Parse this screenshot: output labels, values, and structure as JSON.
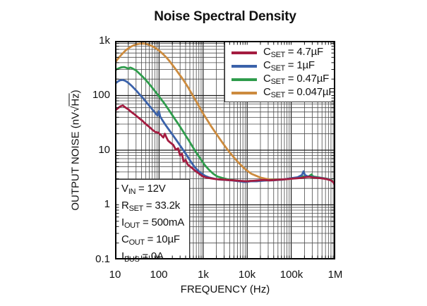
{
  "title": "Noise Spectral Density",
  "axes": {
    "x": {
      "label": "FREQUENCY (Hz)",
      "scale": "log",
      "min": 10,
      "max": 1000000,
      "ticks": [
        "10",
        "100",
        "1k",
        "10k",
        "100k",
        "1M"
      ]
    },
    "y": {
      "label_pre": "OUTPUT NOISE (nV",
      "label_sqrt": "√",
      "label_root": "Hz",
      "label_post": ")",
      "scale": "log",
      "min": 0.1,
      "max": 1000,
      "ticks": [
        "1k",
        "100",
        "10",
        "1",
        "0.1"
      ]
    }
  },
  "legend": {
    "items": [
      {
        "pre": "C",
        "sub": "SET",
        "rest": " = 4.7µF",
        "color": "#A41C40"
      },
      {
        "pre": "C",
        "sub": "SET",
        "rest": " = 1µF",
        "color": "#3B62AA"
      },
      {
        "pre": "C",
        "sub": "SET",
        "rest": " = 0.47µF",
        "color": "#2F9C4C"
      },
      {
        "pre": "C",
        "sub": "SET",
        "rest": " = 0.047µF",
        "color": "#CC8B3E"
      }
    ]
  },
  "annotation": {
    "lines": [
      {
        "pre": "V",
        "sub": "IN",
        "rest": " = 12V"
      },
      {
        "pre": "R",
        "sub": "SET",
        "rest": " = 33.2k"
      },
      {
        "pre": "I",
        "sub": "OUT",
        "rest": " = 500mA"
      },
      {
        "pre": "C",
        "sub": "OUT",
        "rest": " = 10µF"
      },
      {
        "pre": "I",
        "sub": "BUS",
        "rest": " = 0A"
      }
    ]
  },
  "chart_data": {
    "type": "line",
    "title": "Noise Spectral Density",
    "xlabel": "FREQUENCY (Hz)",
    "ylabel": "OUTPUT NOISE (nV/√Hz)",
    "xscale": "log",
    "yscale": "log",
    "xlim": [
      10,
      1000000
    ],
    "ylim": [
      0.1,
      1000
    ],
    "grid": "full log-log grid with minor lines",
    "legend_position": "top-right inside plot",
    "annotations": [
      "VIN = 12V",
      "RSET = 33.2k",
      "IOUT = 500mA",
      "COUT = 10µF",
      "IBUS = 0A"
    ],
    "series": [
      {
        "id": "cset-4p7uF",
        "name": "CSET = 4.7µF",
        "color": "#A41C40",
        "points": [
          [
            10,
            53
          ],
          [
            11.5,
            58
          ],
          [
            13,
            63
          ],
          [
            15,
            66
          ],
          [
            16.5,
            62
          ],
          [
            18,
            59
          ],
          [
            20,
            56
          ],
          [
            22,
            52
          ],
          [
            25,
            48
          ],
          [
            28,
            45
          ],
          [
            32,
            41
          ],
          [
            36,
            38
          ],
          [
            41,
            35
          ],
          [
            47,
            31.5
          ],
          [
            54,
            28.5
          ],
          [
            62,
            26
          ],
          [
            71,
            23.5
          ],
          [
            82,
            21.5
          ],
          [
            95,
            21
          ],
          [
            110,
            19
          ],
          [
            125,
            17
          ],
          [
            135,
            20
          ],
          [
            145,
            17.5
          ],
          [
            160,
            15
          ],
          [
            185,
            13.5
          ],
          [
            210,
            12.5
          ],
          [
            240,
            10.2
          ],
          [
            270,
            10.8
          ],
          [
            300,
            8.0
          ],
          [
            330,
            8.6
          ],
          [
            360,
            6.2
          ],
          [
            400,
            6.6
          ],
          [
            450,
            5.4
          ],
          [
            510,
            5.0
          ],
          [
            580,
            4.6
          ],
          [
            660,
            4.2
          ],
          [
            750,
            3.9
          ],
          [
            850,
            3.6
          ],
          [
            1000,
            3.3
          ],
          [
            1200,
            3.15
          ],
          [
            1500,
            3.05
          ],
          [
            2000,
            2.95
          ],
          [
            2700,
            2.9
          ],
          [
            3600,
            2.85
          ],
          [
            5000,
            2.8
          ],
          [
            7000,
            2.75
          ],
          [
            9500,
            2.7
          ],
          [
            13000,
            2.75
          ],
          [
            18000,
            2.8
          ],
          [
            24000,
            2.85
          ],
          [
            32000,
            2.8
          ],
          [
            43000,
            2.85
          ],
          [
            58000,
            2.9
          ],
          [
            78000,
            2.95
          ],
          [
            100000,
            3.0
          ],
          [
            130000,
            3.05
          ],
          [
            170000,
            3.1
          ],
          [
            210000,
            3.2
          ],
          [
            260000,
            3.25
          ],
          [
            320000,
            3.15
          ],
          [
            400000,
            3.1
          ],
          [
            500000,
            3.05
          ],
          [
            650000,
            2.95
          ],
          [
            800000,
            2.8
          ],
          [
            900000,
            2.6
          ],
          [
            1000000,
            2.3
          ]
        ]
      },
      {
        "id": "cset-1uF",
        "name": "CSET = 1µF",
        "color": "#3B62AA",
        "points": [
          [
            10,
            165
          ],
          [
            11.5,
            180
          ],
          [
            13,
            190
          ],
          [
            15,
            193
          ],
          [
            17,
            186
          ],
          [
            19,
            176
          ],
          [
            21,
            165
          ],
          [
            24,
            150
          ],
          [
            27,
            136
          ],
          [
            31,
            121
          ],
          [
            35,
            108
          ],
          [
            40,
            96
          ],
          [
            46,
            84
          ],
          [
            53,
            73
          ],
          [
            61,
            64
          ],
          [
            70,
            56
          ],
          [
            80,
            49
          ],
          [
            92,
            43
          ],
          [
            99,
            52
          ],
          [
            106,
            41
          ],
          [
            120,
            35
          ],
          [
            140,
            29
          ],
          [
            165,
            24
          ],
          [
            195,
            20
          ],
          [
            230,
            16.5
          ],
          [
            270,
            13.8
          ],
          [
            320,
            11.3
          ],
          [
            380,
            9.2
          ],
          [
            450,
            7.5
          ],
          [
            530,
            6.1
          ],
          [
            630,
            5.0
          ],
          [
            750,
            4.3
          ],
          [
            900,
            3.8
          ],
          [
            1100,
            3.4
          ],
          [
            1400,
            3.15
          ],
          [
            1800,
            3.0
          ],
          [
            2400,
            2.9
          ],
          [
            3200,
            2.85
          ],
          [
            4500,
            2.8
          ],
          [
            6500,
            2.7
          ],
          [
            9000,
            2.6
          ],
          [
            12000,
            2.7
          ],
          [
            16000,
            2.7
          ],
          [
            21000,
            2.75
          ],
          [
            28000,
            2.8
          ],
          [
            37000,
            2.8
          ],
          [
            50000,
            2.85
          ],
          [
            65000,
            2.9
          ],
          [
            85000,
            3.0
          ],
          [
            110000,
            3.1
          ],
          [
            140000,
            3.2
          ],
          [
            175000,
            3.5
          ],
          [
            190000,
            4.1
          ],
          [
            205000,
            3.5
          ],
          [
            240000,
            3.3
          ],
          [
            300000,
            3.25
          ],
          [
            380000,
            3.15
          ],
          [
            480000,
            3.1
          ],
          [
            600000,
            3.0
          ],
          [
            750000,
            2.9
          ],
          [
            900000,
            2.6
          ],
          [
            1000000,
            2.3
          ]
        ]
      },
      {
        "id": "cset-0p47uF",
        "name": "CSET = 0.47µF",
        "color": "#2F9C4C",
        "points": [
          [
            10,
            290
          ],
          [
            11,
            305
          ],
          [
            12.5,
            318
          ],
          [
            14,
            328
          ],
          [
            16,
            332
          ],
          [
            18,
            322
          ],
          [
            20,
            310
          ],
          [
            22,
            325
          ],
          [
            24,
            318
          ],
          [
            27,
            302
          ],
          [
            30,
            288
          ],
          [
            34,
            262
          ],
          [
            39,
            236
          ],
          [
            44,
            214
          ],
          [
            50,
            192
          ],
          [
            57,
            170
          ],
          [
            65,
            150
          ],
          [
            75,
            130
          ],
          [
            86,
            113
          ],
          [
            99,
            97
          ],
          [
            115,
            83
          ],
          [
            135,
            70
          ],
          [
            158,
            58
          ],
          [
            185,
            48
          ],
          [
            215,
            40
          ],
          [
            250,
            33.5
          ],
          [
            295,
            27.5
          ],
          [
            345,
            22.5
          ],
          [
            405,
            18.3
          ],
          [
            480,
            14.8
          ],
          [
            560,
            12.0
          ],
          [
            660,
            9.7
          ],
          [
            780,
            7.9
          ],
          [
            920,
            6.5
          ],
          [
            1100,
            5.3
          ],
          [
            1350,
            4.4
          ],
          [
            1700,
            3.7
          ],
          [
            2100,
            3.3
          ],
          [
            2700,
            3.1
          ],
          [
            3500,
            2.95
          ],
          [
            4700,
            2.85
          ],
          [
            6500,
            2.75
          ],
          [
            9000,
            2.7
          ],
          [
            12000,
            2.75
          ],
          [
            16000,
            2.7
          ],
          [
            21000,
            2.8
          ],
          [
            28000,
            2.8
          ],
          [
            37000,
            2.85
          ],
          [
            50000,
            2.9
          ],
          [
            65000,
            2.9
          ],
          [
            85000,
            3.0
          ],
          [
            110000,
            3.1
          ],
          [
            145000,
            3.15
          ],
          [
            190000,
            3.3
          ],
          [
            240000,
            3.25
          ],
          [
            290000,
            3.6
          ],
          [
            310000,
            3.3
          ],
          [
            400000,
            3.2
          ],
          [
            500000,
            3.1
          ],
          [
            650000,
            3.0
          ],
          [
            800000,
            2.85
          ],
          [
            900000,
            2.65
          ],
          [
            1000000,
            2.4
          ]
        ]
      },
      {
        "id": "cset-0p047uF",
        "name": "CSET = 0.047µF",
        "color": "#CC8B3E",
        "points": [
          [
            10,
            400
          ],
          [
            11,
            445
          ],
          [
            12.5,
            505
          ],
          [
            14,
            560
          ],
          [
            16,
            625
          ],
          [
            18,
            685
          ],
          [
            20,
            730
          ],
          [
            23,
            785
          ],
          [
            26,
            825
          ],
          [
            30,
            860
          ],
          [
            34,
            880
          ],
          [
            38,
            892
          ],
          [
            43,
            896
          ],
          [
            48,
            888
          ],
          [
            55,
            865
          ],
          [
            63,
            830
          ],
          [
            72,
            790
          ],
          [
            83,
            740
          ],
          [
            95,
            685
          ],
          [
            110,
            620
          ],
          [
            128,
            555
          ],
          [
            150,
            487
          ],
          [
            175,
            420
          ],
          [
            205,
            355
          ],
          [
            240,
            300
          ],
          [
            280,
            252
          ],
          [
            330,
            210
          ],
          [
            390,
            172
          ],
          [
            460,
            139
          ],
          [
            540,
            111
          ],
          [
            640,
            88
          ],
          [
            760,
            69
          ],
          [
            900,
            54
          ],
          [
            1080,
            42.5
          ],
          [
            1300,
            33.5
          ],
          [
            1560,
            26.5
          ],
          [
            1900,
            21
          ],
          [
            2300,
            16.8
          ],
          [
            2800,
            13.4
          ],
          [
            3400,
            10.8
          ],
          [
            4200,
            8.7
          ],
          [
            5200,
            7.1
          ],
          [
            6400,
            5.9
          ],
          [
            8000,
            4.9
          ],
          [
            10000,
            4.2
          ],
          [
            12500,
            3.7
          ],
          [
            16000,
            3.4
          ],
          [
            20000,
            3.15
          ],
          [
            26000,
            3.0
          ],
          [
            34000,
            2.9
          ],
          [
            45000,
            2.9
          ],
          [
            60000,
            2.9
          ],
          [
            80000,
            2.95
          ],
          [
            100000,
            3.0
          ],
          [
            130000,
            3.1
          ],
          [
            170000,
            3.2
          ],
          [
            220000,
            3.3
          ],
          [
            280000,
            3.2
          ],
          [
            350000,
            3.2
          ],
          [
            450000,
            3.1
          ],
          [
            600000,
            3.0
          ],
          [
            750000,
            2.9
          ],
          [
            900000,
            2.65
          ],
          [
            1000000,
            2.4
          ]
        ]
      }
    ]
  }
}
